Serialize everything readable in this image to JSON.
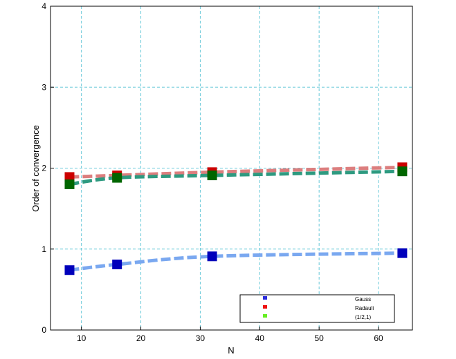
{
  "chart_data": {
    "type": "line",
    "xlabel": "N",
    "ylabel": "Order of convergence",
    "xlim": [
      4.8,
      65.7
    ],
    "ylim": [
      0,
      4
    ],
    "xticks": [
      10,
      20,
      30,
      40,
      50,
      60
    ],
    "yticks": [
      0,
      1,
      2,
      3,
      4
    ],
    "grid": true,
    "legend_position": "bottom-right",
    "series": [
      {
        "name": "Gauss",
        "x": [
          8,
          16,
          32,
          64
        ],
        "y": [
          0.74,
          0.81,
          0.91,
          0.95
        ],
        "line_color": "#7aa8f0",
        "marker_color": "#0000bb",
        "legend_color": "#2b2bdd"
      },
      {
        "name": "Radauli",
        "x": [
          8,
          16,
          32,
          64
        ],
        "y": [
          1.89,
          1.91,
          1.95,
          2.01
        ],
        "line_color": "#dc7e7e",
        "marker_color": "#cc0000",
        "legend_color": "#ee1111"
      },
      {
        "name": "(1/2,1)",
        "x": [
          8,
          16,
          32,
          64
        ],
        "y": [
          1.8,
          1.88,
          1.91,
          1.96
        ],
        "line_color": "#2e9a80",
        "marker_color": "#006600",
        "legend_color": "#66ee22"
      }
    ]
  }
}
